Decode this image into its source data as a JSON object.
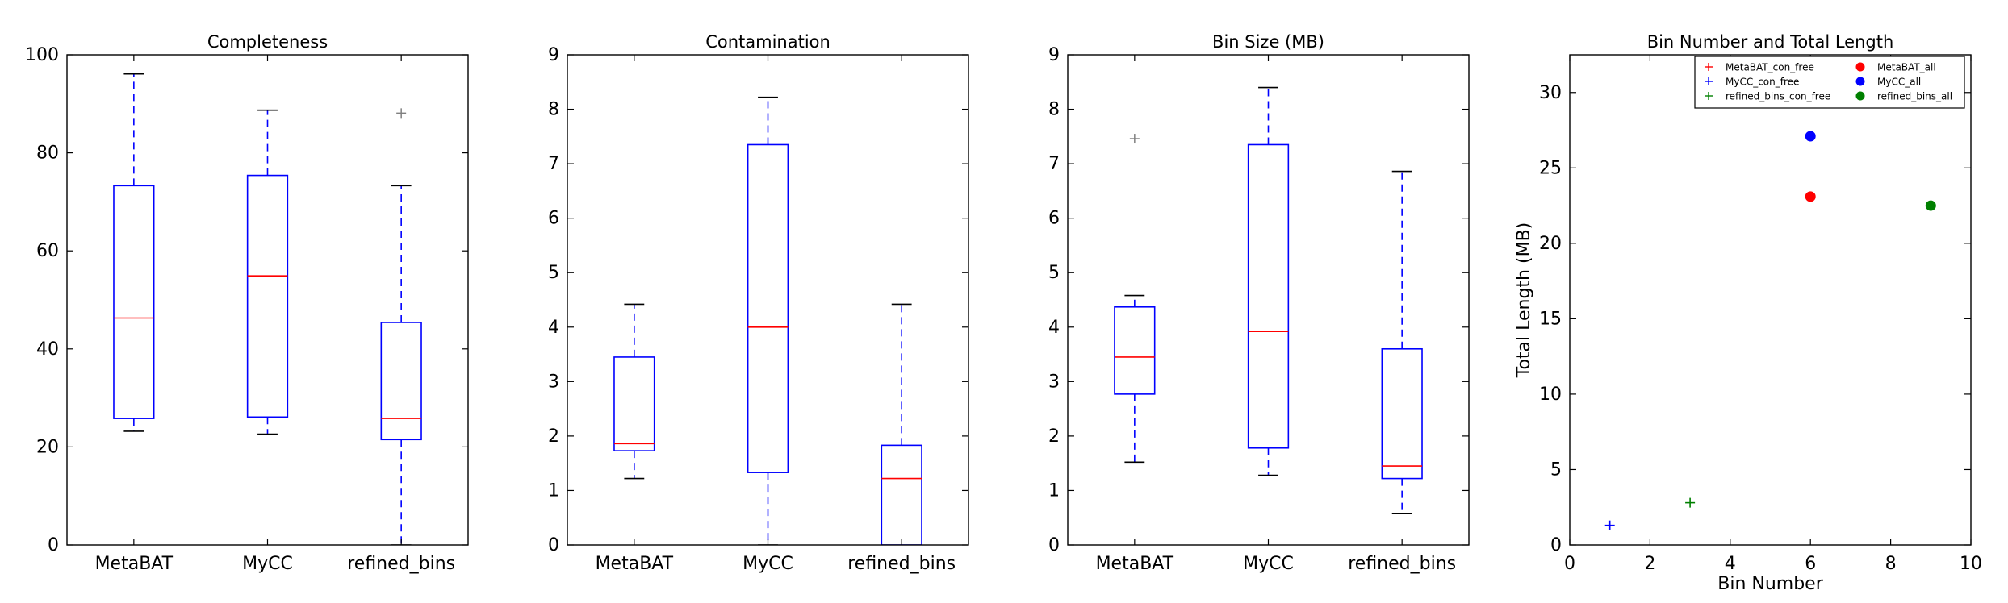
{
  "chart_data": [
    {
      "type": "box",
      "title": "Completeness",
      "categories": [
        "MetaBAT",
        "MyCC",
        "refined_bins"
      ],
      "ylim": [
        0,
        100
      ],
      "yticks": [
        0,
        20,
        40,
        60,
        80,
        100
      ],
      "boxes": [
        {
          "whislo": 23.2,
          "q1": 25.8,
          "med": 46.3,
          "q3": 73.3,
          "whishi": 96.1,
          "fliers": []
        },
        {
          "whislo": 22.6,
          "q1": 26.1,
          "med": 54.9,
          "q3": 75.4,
          "whishi": 88.7,
          "fliers": []
        },
        {
          "whislo": 0,
          "q1": 21.5,
          "med": 25.8,
          "q3": 45.4,
          "whishi": 73.3,
          "fliers": [
            88.1
          ]
        }
      ],
      "grid": false
    },
    {
      "type": "box",
      "title": "Contamination",
      "categories": [
        "MetaBAT",
        "MyCC",
        "refined_bins"
      ],
      "ylim": [
        0,
        9
      ],
      "yticks": [
        0,
        1,
        2,
        3,
        4,
        5,
        6,
        7,
        8,
        9
      ],
      "boxes": [
        {
          "whislo": 1.22,
          "q1": 1.73,
          "med": 1.86,
          "q3": 3.45,
          "whishi": 4.42,
          "fliers": []
        },
        {
          "whislo": 0,
          "q1": 1.33,
          "med": 4.0,
          "q3": 7.35,
          "whishi": 8.22,
          "fliers": []
        },
        {
          "whislo": 0,
          "q1": 0,
          "med": 1.22,
          "q3": 1.83,
          "whishi": 4.42,
          "fliers": []
        }
      ],
      "grid": false
    },
    {
      "type": "box",
      "title": "Bin Size (MB)",
      "categories": [
        "MetaBAT",
        "MyCC",
        "refined_bins"
      ],
      "ylim": [
        0,
        9
      ],
      "yticks": [
        0,
        1,
        2,
        3,
        4,
        5,
        6,
        7,
        8,
        9
      ],
      "boxes": [
        {
          "whislo": 1.52,
          "q1": 2.77,
          "med": 3.45,
          "q3": 4.37,
          "whishi": 4.58,
          "fliers": [
            7.46
          ]
        },
        {
          "whislo": 1.28,
          "q1": 1.78,
          "med": 3.92,
          "q3": 7.35,
          "whishi": 8.4,
          "fliers": []
        },
        {
          "whislo": 0.58,
          "q1": 1.22,
          "med": 1.45,
          "q3": 3.6,
          "whishi": 6.86,
          "fliers": []
        }
      ],
      "grid": false
    },
    {
      "type": "scatter",
      "title": "Bin Number and Total Length",
      "xlabel": "Bin Number",
      "ylabel": "Total Length (MB)",
      "xlim": [
        0,
        10
      ],
      "ylim": [
        0,
        32.5
      ],
      "xticks": [
        0,
        2,
        4,
        6,
        8,
        10
      ],
      "yticks": [
        0,
        5,
        10,
        15,
        20,
        25,
        30
      ],
      "legend_position": "top-right",
      "series": [
        {
          "name": "MetaBAT_con_free",
          "marker": "plus",
          "color": "#ff0000",
          "points": []
        },
        {
          "name": "MyCC_con_free",
          "marker": "plus",
          "color": "#0000ff",
          "points": [
            [
              1,
              1.3
            ]
          ]
        },
        {
          "name": "refined_bins_con_free",
          "marker": "plus",
          "color": "#008000",
          "points": [
            [
              3,
              2.8
            ]
          ]
        },
        {
          "name": "MetaBAT_all",
          "marker": "circle",
          "color": "#ff0000",
          "points": [
            [
              6,
              23.1
            ]
          ]
        },
        {
          "name": "MyCC_all",
          "marker": "circle",
          "color": "#0000ff",
          "points": [
            [
              6,
              27.1
            ]
          ]
        },
        {
          "name": "refined_bins_all",
          "marker": "circle",
          "color": "#008000",
          "points": [
            [
              9,
              22.5
            ]
          ]
        }
      ]
    }
  ],
  "colors": {
    "box": "#0000ff",
    "median": "#ff0000",
    "whisker_cap": "#000000",
    "flier": "#808080"
  }
}
